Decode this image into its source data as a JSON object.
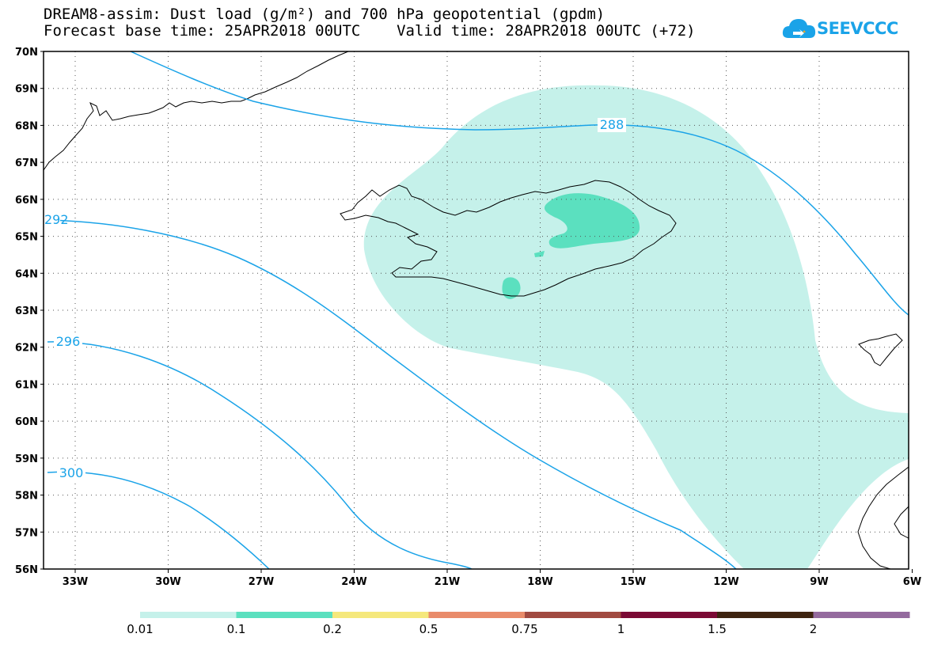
{
  "title": {
    "line1": "DREAM8-assim: Dust load (g/m²) and 700 hPa geopotential (gpdm)",
    "line2": "Forecast base time: 25APR2018 00UTC    Valid time: 28APR2018 00UTC (+72)"
  },
  "logo": {
    "text": "SEEVCCC",
    "icon": "cloud-icon"
  },
  "map": {
    "lat_labels": [
      "70N",
      "69N",
      "68N",
      "67N",
      "66N",
      "65N",
      "64N",
      "63N",
      "62N",
      "61N",
      "60N",
      "59N",
      "58N",
      "57N",
      "56N"
    ],
    "lon_labels": [
      "33W",
      "30W",
      "27W",
      "24W",
      "21W",
      "18W",
      "15W",
      "12W",
      "9W",
      "6W"
    ],
    "contour_labels": [
      "288",
      "292",
      "296",
      "300"
    ],
    "contour_color": "#1aa3e8",
    "grid": "dotted"
  },
  "colorbar": {
    "labels": [
      "0.01",
      "0.1",
      "0.2",
      "0.5",
      "0.75",
      "1",
      "1.5",
      "2"
    ],
    "colors": [
      "#c5f1ea",
      "#5be0bf",
      "#f5e87c",
      "#e98b6a",
      "#a14a41",
      "#7b0a35",
      "#3e2410",
      "#946a9e"
    ]
  }
}
